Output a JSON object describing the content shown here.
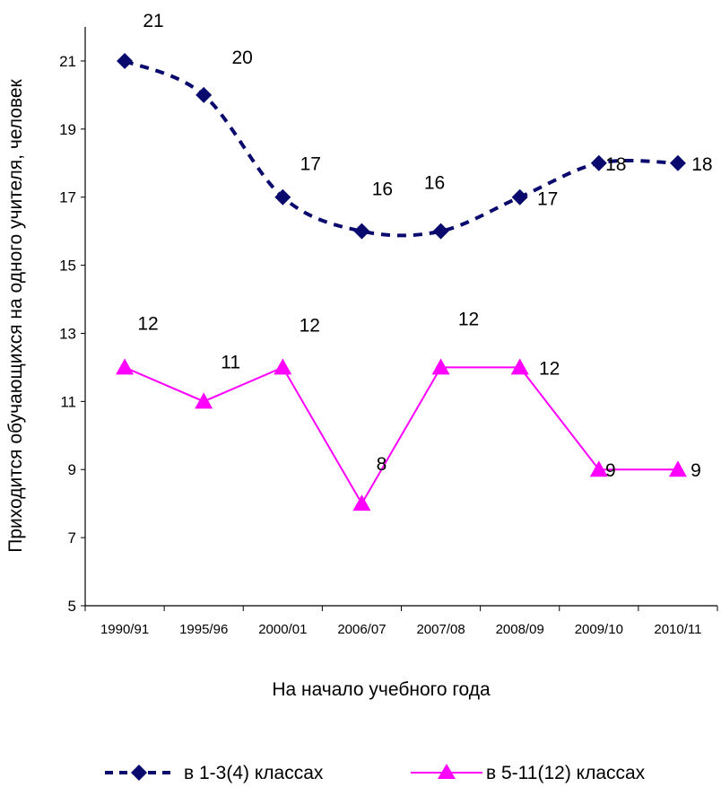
{
  "chart_data": {
    "type": "line",
    "categories": [
      "1990/91",
      "1995/96",
      "2000/01",
      "2006/07",
      "2007/08",
      "2008/09",
      "2009/10",
      "2010/11"
    ],
    "series": [
      {
        "name": "в 1-3(4) классах",
        "values": [
          21,
          20,
          17,
          16,
          16,
          17,
          18,
          18
        ],
        "color": "#0a0a6e",
        "style": "dashed",
        "marker": "diamond"
      },
      {
        "name": "в 5-11(12) классах",
        "values": [
          12,
          11,
          12,
          8,
          12,
          12,
          9,
          9
        ],
        "color": "#ff00ff",
        "style": "solid",
        "marker": "triangle"
      }
    ],
    "title": "",
    "xlabel": "На начало учебного года",
    "ylabel": "Приходится обучающихся на одного учителя, человек",
    "ylim": [
      5,
      22
    ],
    "yticks": [
      5,
      7,
      9,
      11,
      13,
      15,
      17,
      19,
      21
    ],
    "grid": false,
    "legend": "bottom"
  }
}
